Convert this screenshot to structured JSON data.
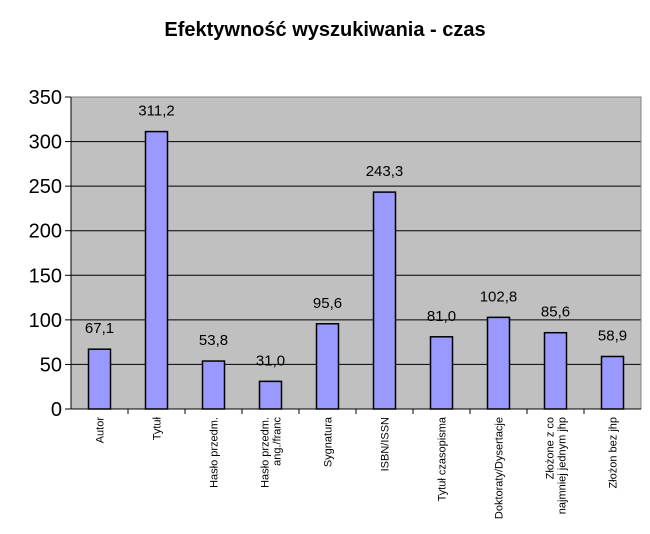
{
  "chart_data": {
    "type": "bar",
    "title": "Efektywność wyszukiwania - czas",
    "xlabel": "",
    "ylabel": "",
    "ylim": [
      0,
      350
    ],
    "yticks": [
      0,
      50,
      100,
      150,
      200,
      250,
      300,
      350
    ],
    "grid": true,
    "legend": "none",
    "colors": {
      "bar": "#9999ff",
      "plot_background": "#c0c0c0",
      "border": "#000000"
    },
    "categories": [
      [
        "Autor"
      ],
      [
        "Tytuł"
      ],
      [
        "Hasło przedm."
      ],
      [
        "Hasło przedm.",
        "ang./franc"
      ],
      [
        "Sygnatura"
      ],
      [
        "ISBN/ISSN"
      ],
      [
        "Tytuł czasopisma"
      ],
      [
        "Doktoraty/Dysertacje"
      ],
      [
        "Złożone z co",
        "najmniej jednym jhp"
      ],
      [
        "Złożon bez jhp"
      ]
    ],
    "values": [
      67.1,
      311.2,
      53.8,
      31.0,
      95.6,
      243.3,
      81.0,
      102.8,
      85.6,
      58.9
    ],
    "data_labels": [
      "67,1",
      "311,2",
      "53,8",
      "31,0",
      "95,6",
      "243,3",
      "81,0",
      "102,8",
      "85,6",
      "58,9"
    ]
  }
}
